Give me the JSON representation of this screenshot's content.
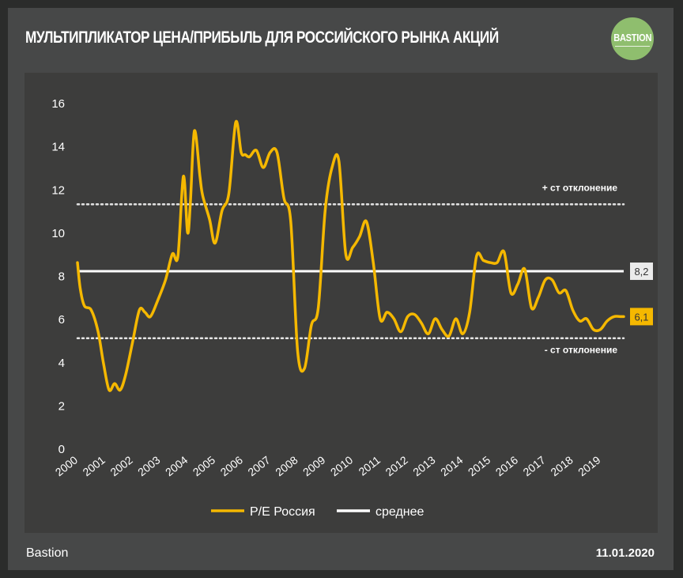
{
  "header": {
    "title": "МУЛЬТИПЛИКАТОР ЦЕНА/ПРИБЫЛЬ ДЛЯ РОССИЙСКОГО РЫНКА АКЦИЙ",
    "logo_text": "BASTION"
  },
  "footer": {
    "source": "Bastion",
    "date": "11.01.2020"
  },
  "colors": {
    "series": "#f5b800",
    "mean": "#ffffff",
    "band": "#e6e6e6"
  },
  "chart_data": {
    "type": "line",
    "title": "МУЛЬТИПЛИКАТОР ЦЕНА/ПРИБЫЛЬ ДЛЯ РОССИЙСКОГО РЫНКА АКЦИЙ",
    "xlabel": "",
    "ylabel": "",
    "xlim": [
      2000,
      2019.85
    ],
    "ylim": [
      0,
      16
    ],
    "y_ticks": [
      0,
      2,
      4,
      6,
      8,
      10,
      12,
      14,
      16
    ],
    "x_ticks": [
      "2000",
      "2001",
      "2002",
      "2003",
      "2004",
      "2005",
      "2006",
      "2007",
      "2008",
      "2009",
      "2010",
      "2011",
      "2012",
      "2013",
      "2014",
      "2015",
      "2016",
      "2017",
      "2018",
      "2019"
    ],
    "grid": false,
    "legend_position": "bottom",
    "series": [
      {
        "name": "P/E Россия",
        "x": [
          2000.0,
          2000.1,
          2000.25,
          2000.5,
          2000.75,
          2000.95,
          2001.15,
          2001.35,
          2001.55,
          2001.75,
          2002.0,
          2002.25,
          2002.45,
          2002.65,
          2002.9,
          2003.2,
          2003.45,
          2003.65,
          2003.85,
          2004.0,
          2004.1,
          2004.25,
          2004.45,
          2004.55,
          2004.8,
          2005.0,
          2005.25,
          2005.5,
          2005.75,
          2005.95,
          2006.1,
          2006.25,
          2006.5,
          2006.75,
          2007.0,
          2007.25,
          2007.5,
          2007.75,
          2008.0,
          2008.25,
          2008.5,
          2008.75,
          2009.0,
          2009.25,
          2009.5,
          2009.75,
          2010.0,
          2010.25,
          2010.5,
          2010.75,
          2011.0,
          2011.25,
          2011.5,
          2011.75,
          2012.0,
          2012.25,
          2012.5,
          2012.75,
          2013.0,
          2013.25,
          2013.5,
          2013.75,
          2014.0,
          2014.25,
          2014.5,
          2014.75,
          2015.0,
          2015.25,
          2015.5,
          2015.75,
          2016.0,
          2016.25,
          2016.5,
          2016.75,
          2017.0,
          2017.25,
          2017.5,
          2017.75,
          2018.0,
          2018.25,
          2018.5,
          2018.75,
          2019.0,
          2019.25,
          2019.5,
          2019.75,
          2019.85
        ],
        "values": [
          8.6,
          7.4,
          6.6,
          6.4,
          5.4,
          3.9,
          2.7,
          3.0,
          2.7,
          3.4,
          4.9,
          6.4,
          6.3,
          6.1,
          6.8,
          7.8,
          9.0,
          8.9,
          12.6,
          10.0,
          11.3,
          14.7,
          12.6,
          11.7,
          10.6,
          9.5,
          11.0,
          11.8,
          15.1,
          13.7,
          13.6,
          13.5,
          13.8,
          13.0,
          13.7,
          13.7,
          11.6,
          10.5,
          4.5,
          3.7,
          5.7,
          6.5,
          11.0,
          13.0,
          13.3,
          9.0,
          9.3,
          9.8,
          10.5,
          8.6,
          6.0,
          6.3,
          6.0,
          5.4,
          6.1,
          6.2,
          5.8,
          5.3,
          6.0,
          5.5,
          5.2,
          6.0,
          5.3,
          6.3,
          8.9,
          8.7,
          8.6,
          8.6,
          9.1,
          7.2,
          7.6,
          8.3,
          6.5,
          7.0,
          7.8,
          7.8,
          7.2,
          7.3,
          6.4,
          5.9,
          6.0,
          5.5,
          5.5,
          5.9,
          6.1,
          6.1,
          6.1
        ]
      },
      {
        "name": "среднее",
        "value": 8.2
      }
    ],
    "bands": {
      "upper": {
        "value": 11.3,
        "label": "+ ст отклонение"
      },
      "lower": {
        "value": 5.1,
        "label": "- ст отклонение"
      }
    },
    "end_labels": {
      "mean": "8,2",
      "last": "6,1"
    }
  }
}
